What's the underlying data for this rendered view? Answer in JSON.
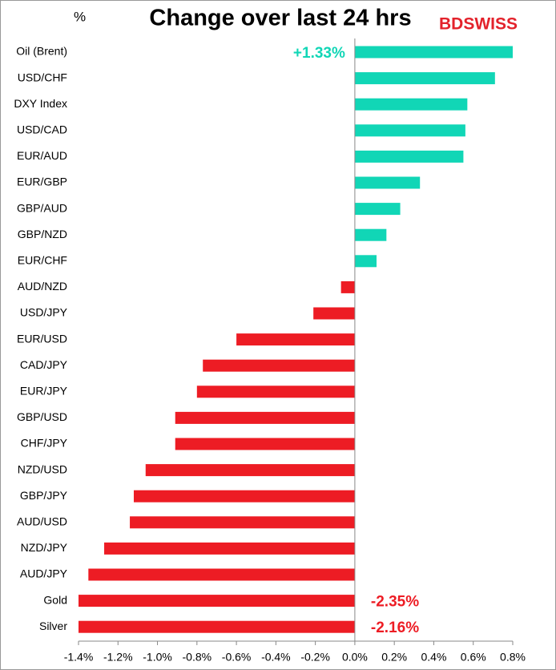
{
  "chart_data": {
    "type": "barh",
    "title": "Change over last 24 hrs",
    "y_axis_label": "%",
    "brand": "BDSWISS",
    "categories": [
      "Oil (Brent)",
      "USD/CHF",
      "DXY Index",
      "USD/CAD",
      "EUR/AUD",
      "EUR/GBP",
      "GBP/AUD",
      "GBP/NZD",
      "EUR/CHF",
      "AUD/NZD",
      "USD/JPY",
      "EUR/USD",
      "CAD/JPY",
      "EUR/JPY",
      "GBP/USD",
      "CHF/JPY",
      "NZD/USD",
      "GBP/JPY",
      "AUD/USD",
      "NZD/JPY",
      "AUD/JPY",
      "Gold",
      "Silver"
    ],
    "values": [
      1.33,
      0.71,
      0.57,
      0.56,
      0.55,
      0.33,
      0.23,
      0.16,
      0.11,
      -0.07,
      -0.21,
      -0.6,
      -0.77,
      -0.8,
      -0.91,
      -0.91,
      -1.06,
      -1.12,
      -1.14,
      -1.27,
      -1.35,
      -2.35,
      -2.16
    ],
    "value_labels": [
      "+1.33%",
      null,
      null,
      null,
      null,
      null,
      null,
      null,
      null,
      null,
      null,
      null,
      null,
      null,
      null,
      null,
      null,
      null,
      null,
      null,
      null,
      "-2.35%",
      "-2.16%"
    ],
    "positive_color": "#11d6b6",
    "negative_color": "#ed1c24",
    "xlim": [
      -1.4,
      0.8
    ],
    "xticks": [
      {
        "value": -1.4,
        "label": "-1.4%"
      },
      {
        "value": -1.2,
        "label": "-1.2%"
      },
      {
        "value": -1.0,
        "label": "-1.0%"
      },
      {
        "value": -0.8,
        "label": "-0.8%"
      },
      {
        "value": -0.6,
        "label": "-0.6%"
      },
      {
        "value": -0.4,
        "label": "-0.4%"
      },
      {
        "value": -0.2,
        "label": "-0.2%"
      },
      {
        "value": 0.0,
        "label": "0.0%"
      },
      {
        "value": 0.2,
        "label": "0.2%"
      },
      {
        "value": 0.4,
        "label": "0.4%"
      },
      {
        "value": 0.6,
        "label": "0.6%"
      },
      {
        "value": 0.8,
        "label": "0.8%"
      }
    ]
  }
}
